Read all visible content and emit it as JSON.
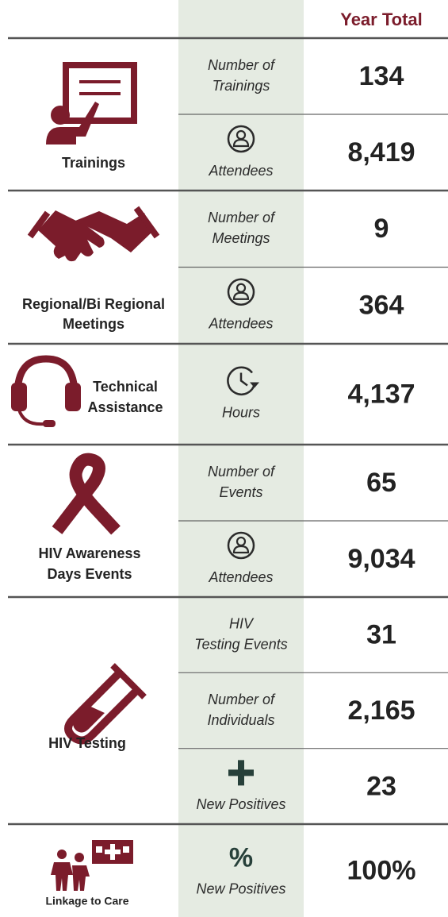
{
  "header": {
    "column_title": "Year Total"
  },
  "sections": [
    {
      "label": [
        "Trainings"
      ],
      "rows": [
        {
          "metric": [
            "Number of",
            "Trainings"
          ],
          "value": "134"
        },
        {
          "metric": [
            "Attendees"
          ],
          "value": "8,419"
        }
      ]
    },
    {
      "label": [
        "Regional/Bi Regional",
        "Meetings"
      ],
      "rows": [
        {
          "metric": [
            "Number of",
            "Meetings"
          ],
          "value": "9"
        },
        {
          "metric": [
            "Attendees"
          ],
          "value": "364"
        }
      ]
    },
    {
      "label": [
        "Technical",
        "Assistance"
      ],
      "rows": [
        {
          "metric": [
            "Hours"
          ],
          "value": "4,137"
        }
      ]
    },
    {
      "label": [
        "HIV Awareness",
        "Days Events"
      ],
      "rows": [
        {
          "metric": [
            "Number of",
            "Events"
          ],
          "value": "65"
        },
        {
          "metric": [
            "Attendees"
          ],
          "value": "9,034"
        }
      ]
    },
    {
      "label": [
        "HIV Testing"
      ],
      "rows": [
        {
          "metric": [
            "HIV",
            "Testing Events"
          ],
          "value": "31"
        },
        {
          "metric": [
            "Number of",
            "Individuals"
          ],
          "value": "2,165"
        },
        {
          "metric": [
            "New Positives"
          ],
          "value": "23"
        }
      ]
    },
    {
      "label": [
        "Linkage to Care"
      ],
      "rows": [
        {
          "symbol": "%",
          "metric": [
            "New Positives"
          ],
          "value": "100%"
        }
      ]
    }
  ]
}
